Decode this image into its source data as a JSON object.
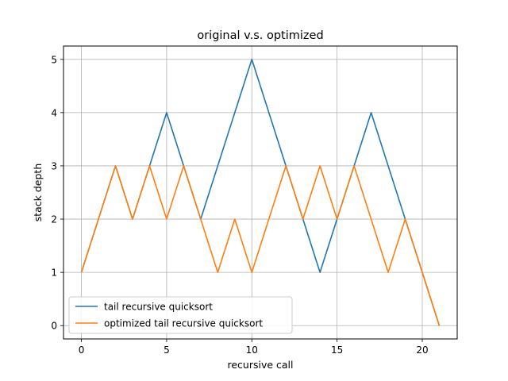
{
  "chart_data": {
    "type": "line",
    "title": "original v.s. optimized",
    "xlabel": "recursive call",
    "ylabel": "stack depth",
    "xlim": [
      -1.05,
      22.05
    ],
    "ylim": [
      -0.25,
      5.25
    ],
    "xticks": [
      0,
      5,
      10,
      15,
      20
    ],
    "yticks": [
      0,
      1,
      2,
      3,
      4,
      5
    ],
    "grid": true,
    "legend_position": "lower-left",
    "x": [
      0,
      1,
      2,
      3,
      4,
      5,
      6,
      7,
      8,
      9,
      10,
      11,
      12,
      13,
      14,
      15,
      16,
      17,
      18,
      19,
      20,
      21
    ],
    "series": [
      {
        "name": "tail recursive quicksort",
        "color": "#1f77b4",
        "values": [
          1,
          2,
          3,
          2,
          3,
          4,
          3,
          2,
          3,
          4,
          5,
          4,
          3,
          2,
          1,
          2,
          3,
          4,
          3,
          2,
          1,
          0
        ]
      },
      {
        "name": "optimized tail recursive quicksort",
        "color": "#ff7f0e",
        "values": [
          1,
          2,
          3,
          2,
          3,
          2,
          3,
          2,
          1,
          2,
          1,
          2,
          3,
          2,
          3,
          2,
          3,
          2,
          1,
          2,
          1,
          0
        ]
      }
    ]
  }
}
